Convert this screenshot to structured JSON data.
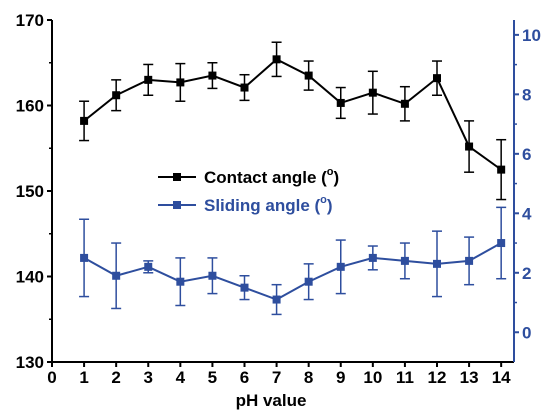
{
  "chart_data": {
    "type": "line",
    "xlabel": "pH value",
    "x": [
      1,
      2,
      3,
      4,
      5,
      6,
      7,
      8,
      9,
      10,
      11,
      12,
      13,
      14
    ],
    "xticks": [
      "0",
      "1",
      "2",
      "3",
      "4",
      "5",
      "6",
      "7",
      "8",
      "9",
      "10",
      "11",
      "12",
      "13",
      "14"
    ],
    "xlim": [
      0,
      14.4
    ],
    "left_axis": {
      "ylim": [
        130,
        170
      ],
      "ticks": [
        "130",
        "140",
        "150",
        "160",
        "170"
      ],
      "color": "#000000"
    },
    "right_axis": {
      "ylim": [
        -1,
        10.5
      ],
      "ticks": [
        "0",
        "2",
        "4",
        "6",
        "8",
        "10"
      ],
      "color": "#2e4e9e"
    },
    "series": [
      {
        "name": "Contact angle (",
        "name_sup": "o",
        "name_close": ")",
        "axis": "left",
        "color": "#000000",
        "marker": "square",
        "values": [
          158.2,
          161.2,
          163.0,
          162.7,
          163.5,
          162.1,
          165.4,
          163.5,
          160.3,
          161.5,
          160.2,
          163.2,
          155.2,
          152.5
        ],
        "errors": [
          2.3,
          1.8,
          1.8,
          2.2,
          1.5,
          1.5,
          2.0,
          1.7,
          1.8,
          2.5,
          2.0,
          2.0,
          3.0,
          3.5
        ]
      },
      {
        "name": "Sliding angle  (",
        "name_sup": "o",
        "name_close": ")",
        "axis": "right",
        "color": "#2e4e9e",
        "marker": "square",
        "values": [
          2.5,
          1.9,
          2.2,
          1.7,
          1.9,
          1.5,
          1.1,
          1.7,
          2.2,
          2.5,
          2.4,
          2.3,
          2.4,
          3.0
        ],
        "errors": [
          1.3,
          1.1,
          0.2,
          0.8,
          0.6,
          0.4,
          0.5,
          0.6,
          0.9,
          0.4,
          0.6,
          1.1,
          0.8,
          1.2
        ]
      }
    ],
    "legend_position": "center",
    "grid": false
  }
}
